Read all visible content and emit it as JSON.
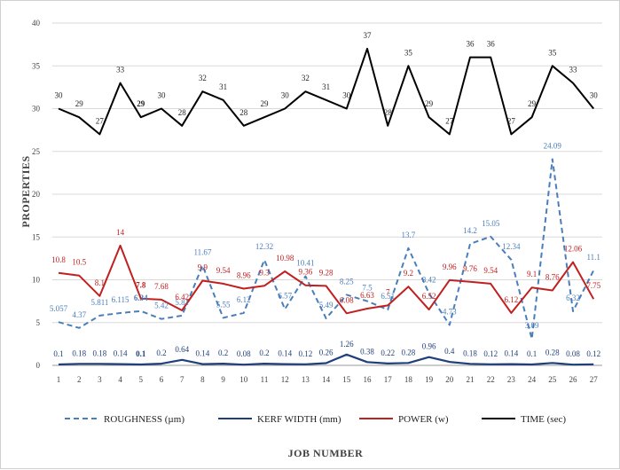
{
  "chart_data": {
    "type": "line",
    "title": "",
    "xlabel": "JOB NUMBER",
    "ylabel": "PROPERTIES",
    "ylim": [
      0,
      40
    ],
    "yticks": [
      0,
      5,
      10,
      15,
      20,
      25,
      30,
      35,
      40
    ],
    "x": [
      1,
      2,
      3,
      4,
      5,
      6,
      7,
      8,
      9,
      10,
      11,
      12,
      13,
      14,
      15,
      16,
      17,
      18,
      19,
      20,
      21,
      22,
      23,
      24,
      25,
      26,
      27
    ],
    "series": [
      {
        "name": "ROUGHNESS (µm)",
        "color": "#4a7ebb",
        "dash": "dashed",
        "values": [
          5.057,
          4.37,
          5.811,
          6.115,
          6.34,
          5.42,
          5.81,
          11.67,
          5.55,
          6.12,
          12.32,
          6.57,
          10.41,
          5.49,
          8.25,
          7.5,
          6.51,
          13.7,
          8.42,
          4.73,
          14.2,
          15.05,
          12.34,
          3.09,
          24.09,
          6.32,
          11.1
        ],
        "labels": [
          "5.057",
          "4.37",
          "5.811",
          "6.115",
          "6.34",
          "5.42",
          "5.81",
          "11.67",
          "5.55",
          "6.12",
          "12.32",
          "6.57",
          "10.41",
          "5.49",
          "8.25",
          "7.5",
          "6.51",
          "13.7",
          "8.42",
          "4.73",
          "14.2",
          "15.05",
          "12.34",
          "3.09",
          "24.09",
          "6.32",
          "11.1"
        ]
      },
      {
        "name": "KERF WIDTH (mm)",
        "color": "#1f3f7a",
        "dash": "solid",
        "values": [
          0.1,
          0.18,
          0.18,
          0.14,
          0.1,
          0.2,
          0.64,
          0.14,
          0.2,
          0.08,
          0.2,
          0.14,
          0.12,
          0.26,
          1.26,
          0.38,
          0.22,
          0.28,
          0.96,
          0.4,
          0.18,
          0.12,
          0.14,
          0.1,
          0.28,
          0.08,
          0.12
        ],
        "labels": [
          "0.1",
          "0.18",
          "0.18",
          "0.14",
          "0.1",
          "0.2",
          "0.64",
          "0.14",
          "0.2",
          "0.08",
          "0.2",
          "0.14",
          "0.12",
          "0.26",
          "1.26",
          "0.38",
          "0.22",
          "0.28",
          "0.96",
          "0.4",
          "0.18",
          "0.12",
          "0.14",
          "0.1",
          "0.28",
          "0.08",
          "0.12"
        ]
      },
      {
        "name": "POWER (w)",
        "color": "#c0201f",
        "dash": "solid",
        "values": [
          10.8,
          10.5,
          8.1,
          14,
          7.8,
          7.68,
          6.42,
          9.9,
          9.54,
          8.96,
          9.3,
          10.98,
          9.36,
          9.28,
          6.08,
          6.63,
          7,
          9.2,
          6.52,
          9.96,
          9.76,
          9.54,
          6.12,
          9.1,
          8.76,
          12.06,
          7.75
        ],
        "labels": [
          "10.8",
          "10.5",
          "8.1",
          "14",
          "7.8",
          "7.68",
          "6.42",
          "9.9",
          "9.54",
          "8.96",
          "9.3",
          "10.98",
          "9.36",
          "9.28",
          "6.08",
          "6.63",
          "7",
          "9.2",
          "6.52",
          "9.96",
          "9.76",
          "9.54",
          "6.12",
          "9.1",
          "8.76",
          "12.06",
          "7.75"
        ]
      },
      {
        "name": "TIME (sec)",
        "color": "#000000",
        "dash": "solid",
        "values": [
          30,
          29,
          27,
          33,
          29,
          30,
          28,
          32,
          31,
          28,
          29,
          30,
          32,
          31,
          30,
          37,
          28,
          35,
          29,
          27,
          36,
          36,
          27,
          29,
          35,
          33,
          30
        ],
        "labels": [
          "30",
          "29",
          "27",
          "33",
          "29",
          "30",
          "28",
          "32",
          "31",
          "28",
          "29",
          "30",
          "32",
          "31",
          "30",
          "37",
          "28",
          "35",
          "29",
          "27",
          "36",
          "36",
          "27",
          "29",
          "35",
          "33",
          "30"
        ]
      }
    ],
    "legend": "bottom"
  }
}
